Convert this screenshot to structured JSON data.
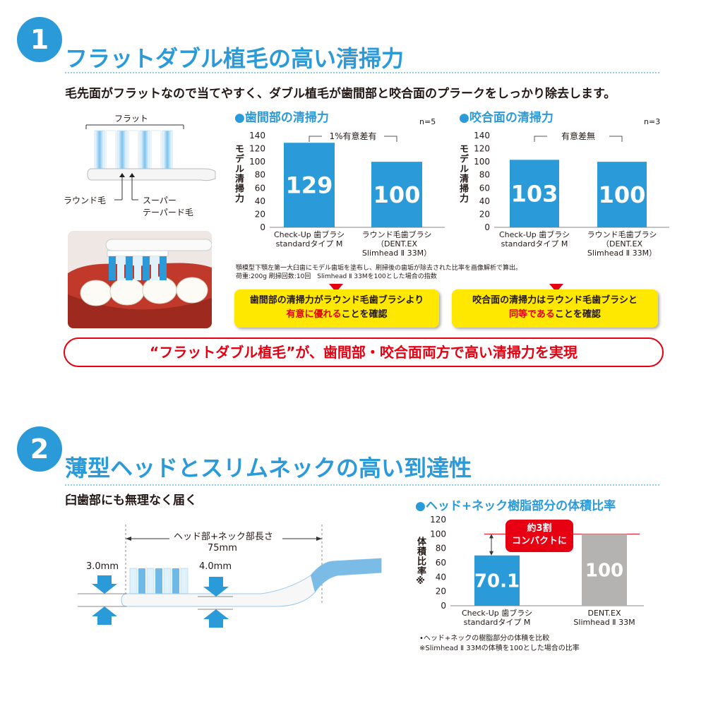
{
  "section1": {
    "number": "1",
    "title": "フラットダブル植毛の高い清掃力",
    "lead": "毛先面がフラットなので当てやすく、ダブル植毛が歯間部と咬合面のプラークをしっかり除去します。",
    "illustration": {
      "flat_label": "フラット",
      "round_label": "ラウンド毛",
      "super_label_1": "スーパー",
      "super_label_2": "テーパード毛"
    },
    "note_1": "顎模型下顎左第一大臼歯にモデル歯垢を塗布し、刷掃後の歯垢が除去された比率を画像解析で算出。",
    "note_2": "荷重:200g 刷掃回数:10回　Slimhead Ⅱ 33Mを100とした場合の指数",
    "callout_left_1": "歯間部の清掃力がラウンド毛歯ブラシより",
    "callout_left_2a": "有意に優れる",
    "callout_left_2b": "ことを確認",
    "callout_right_1": "咬合面の清掃力はラウンド毛歯ブラシと",
    "callout_right_2a": "同等である",
    "callout_right_2b": "ことを確認",
    "banner": "“フラットダブル植毛”が、歯間部・咬合面両方で高い清掃力を実現"
  },
  "section2": {
    "number": "2",
    "title": "薄型ヘッドとスリムネックの高い到達性",
    "lead": "臼歯部にも無理なく届く",
    "length_label": "ヘッド部+ネック部長さ",
    "length_value": "75mm",
    "thick_left": "3.0mm",
    "thick_right": "4.0mm",
    "badge_1": "約3割",
    "badge_2": "コンパクトに",
    "footnote_1": "•ヘッド+ネックの樹脂部分の体積を比較",
    "footnote_2": "※Slimhead Ⅱ 33Mの体積を100とした場合の比率"
  },
  "colors": {
    "accent": "#2b9ad9",
    "bar_blue": "#2b9ad9",
    "bar_gray": "#b5b3b1",
    "red": "#e60012",
    "yellow": "#ffe800"
  },
  "chart_data": [
    {
      "type": "bar",
      "title": "●歯間部の清掃力",
      "ylabel": "モデル清掃力",
      "n_label": "n=5",
      "significance": "1%有意差有",
      "categories": [
        [
          "Check-Up 歯ブラシ",
          "standardタイプ M"
        ],
        [
          "ラウンド毛歯ブラシ",
          "（DENT.EX",
          "Slimhead Ⅱ 33M）"
        ]
      ],
      "values": [
        129,
        100
      ],
      "value_labels": [
        "129",
        "100"
      ],
      "ylim": [
        0,
        140
      ],
      "yticks": [
        "0",
        "20",
        "40",
        "60",
        "80",
        "100",
        "120",
        "140"
      ]
    },
    {
      "type": "bar",
      "title": "●咬合面の清掃力",
      "ylabel": "モデル清掃力",
      "n_label": "n=3",
      "significance": "有意差無",
      "categories": [
        [
          "Check-Up 歯ブラシ",
          "standardタイプ M"
        ],
        [
          "ラウンド毛歯ブラシ",
          "（DENT.EX",
          "Slimhead Ⅱ 33M）"
        ]
      ],
      "values": [
        103,
        100
      ],
      "value_labels": [
        "103",
        "100"
      ],
      "ylim": [
        0,
        140
      ],
      "yticks": [
        "0",
        "20",
        "40",
        "60",
        "80",
        "100",
        "120",
        "140"
      ]
    },
    {
      "type": "bar",
      "title": "●ヘッド+ネック樹脂部分の体積比率",
      "ylabel": "体積比率※",
      "categories": [
        [
          "Check-Up 歯ブラシ",
          "standardタイプ M"
        ],
        [
          "DENT.EX",
          "Slimhead Ⅱ 33M"
        ]
      ],
      "values": [
        70.1,
        100
      ],
      "value_labels": [
        "70.1",
        "100"
      ],
      "ylim": [
        0,
        120
      ],
      "yticks": [
        "0",
        "20",
        "40",
        "60",
        "80",
        "100",
        "120"
      ]
    }
  ]
}
